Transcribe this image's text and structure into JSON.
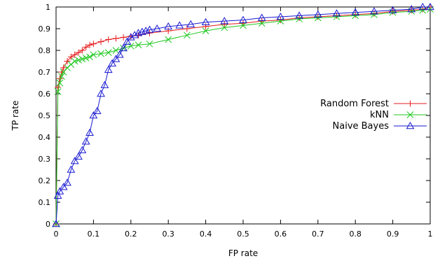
{
  "chart_data": {
    "type": "line",
    "title": "",
    "xlabel": "FP rate",
    "ylabel": "TP rate",
    "xlim": [
      0,
      1
    ],
    "ylim": [
      0,
      1
    ],
    "xticks": [
      "0",
      "0.1",
      "0.2",
      "0.3",
      "0.4",
      "0.5",
      "0.6",
      "0.7",
      "0.8",
      "0.9",
      "1"
    ],
    "yticks": [
      "0",
      "0.1",
      "0.2",
      "0.3",
      "0.4",
      "0.5",
      "0.6",
      "0.7",
      "0.8",
      "0.9",
      "1"
    ],
    "grid": false,
    "legend_position": "center-right",
    "series": [
      {
        "name": "Random Forest",
        "color": "#e41a1c",
        "marker": "plus",
        "x": [
          0,
          0.005,
          0.01,
          0.015,
          0.02,
          0.03,
          0.04,
          0.05,
          0.06,
          0.07,
          0.08,
          0.09,
          0.1,
          0.12,
          0.14,
          0.16,
          0.18,
          0.2,
          0.22,
          0.25,
          0.3,
          0.35,
          0.4,
          0.45,
          0.5,
          0.55,
          0.6,
          0.65,
          0.7,
          0.75,
          0.8,
          0.85,
          0.9,
          0.95,
          0.98,
          1.0
        ],
        "y": [
          0,
          0.63,
          0.67,
          0.7,
          0.72,
          0.75,
          0.77,
          0.78,
          0.79,
          0.8,
          0.815,
          0.825,
          0.83,
          0.84,
          0.85,
          0.855,
          0.86,
          0.865,
          0.87,
          0.88,
          0.89,
          0.9,
          0.91,
          0.92,
          0.925,
          0.935,
          0.94,
          0.95,
          0.955,
          0.96,
          0.965,
          0.97,
          0.98,
          0.985,
          0.99,
          1.0
        ]
      },
      {
        "name": "kNN",
        "color": "#1ec81e",
        "marker": "cross",
        "x": [
          0,
          0.005,
          0.01,
          0.015,
          0.02,
          0.03,
          0.04,
          0.05,
          0.06,
          0.07,
          0.08,
          0.09,
          0.1,
          0.12,
          0.14,
          0.16,
          0.18,
          0.2,
          0.22,
          0.25,
          0.3,
          0.35,
          0.4,
          0.45,
          0.5,
          0.55,
          0.6,
          0.65,
          0.7,
          0.75,
          0.8,
          0.85,
          0.9,
          0.95,
          0.98,
          1.0
        ],
        "y": [
          0,
          0.61,
          0.65,
          0.68,
          0.7,
          0.72,
          0.735,
          0.75,
          0.755,
          0.76,
          0.765,
          0.77,
          0.78,
          0.785,
          0.79,
          0.8,
          0.81,
          0.82,
          0.825,
          0.83,
          0.85,
          0.87,
          0.89,
          0.905,
          0.915,
          0.925,
          0.935,
          0.945,
          0.95,
          0.955,
          0.96,
          0.965,
          0.975,
          0.98,
          0.985,
          0.99
        ]
      },
      {
        "name": "Naive Bayes",
        "color": "#1a1ad2",
        "marker": "triangle",
        "x": [
          0,
          0.005,
          0.01,
          0.02,
          0.03,
          0.04,
          0.05,
          0.06,
          0.07,
          0.08,
          0.09,
          0.1,
          0.11,
          0.12,
          0.13,
          0.14,
          0.15,
          0.16,
          0.17,
          0.18,
          0.19,
          0.2,
          0.21,
          0.22,
          0.23,
          0.24,
          0.25,
          0.27,
          0.3,
          0.33,
          0.36,
          0.4,
          0.45,
          0.5,
          0.55,
          0.6,
          0.65,
          0.7,
          0.75,
          0.8,
          0.85,
          0.9,
          0.95,
          0.98,
          1.0
        ],
        "y": [
          0,
          0.13,
          0.15,
          0.17,
          0.19,
          0.25,
          0.29,
          0.31,
          0.34,
          0.38,
          0.42,
          0.5,
          0.52,
          0.6,
          0.64,
          0.71,
          0.74,
          0.76,
          0.78,
          0.81,
          0.84,
          0.86,
          0.87,
          0.88,
          0.885,
          0.89,
          0.895,
          0.9,
          0.91,
          0.915,
          0.92,
          0.93,
          0.935,
          0.94,
          0.95,
          0.955,
          0.96,
          0.965,
          0.97,
          0.975,
          0.98,
          0.985,
          0.99,
          1.0,
          1.0
        ]
      }
    ]
  }
}
